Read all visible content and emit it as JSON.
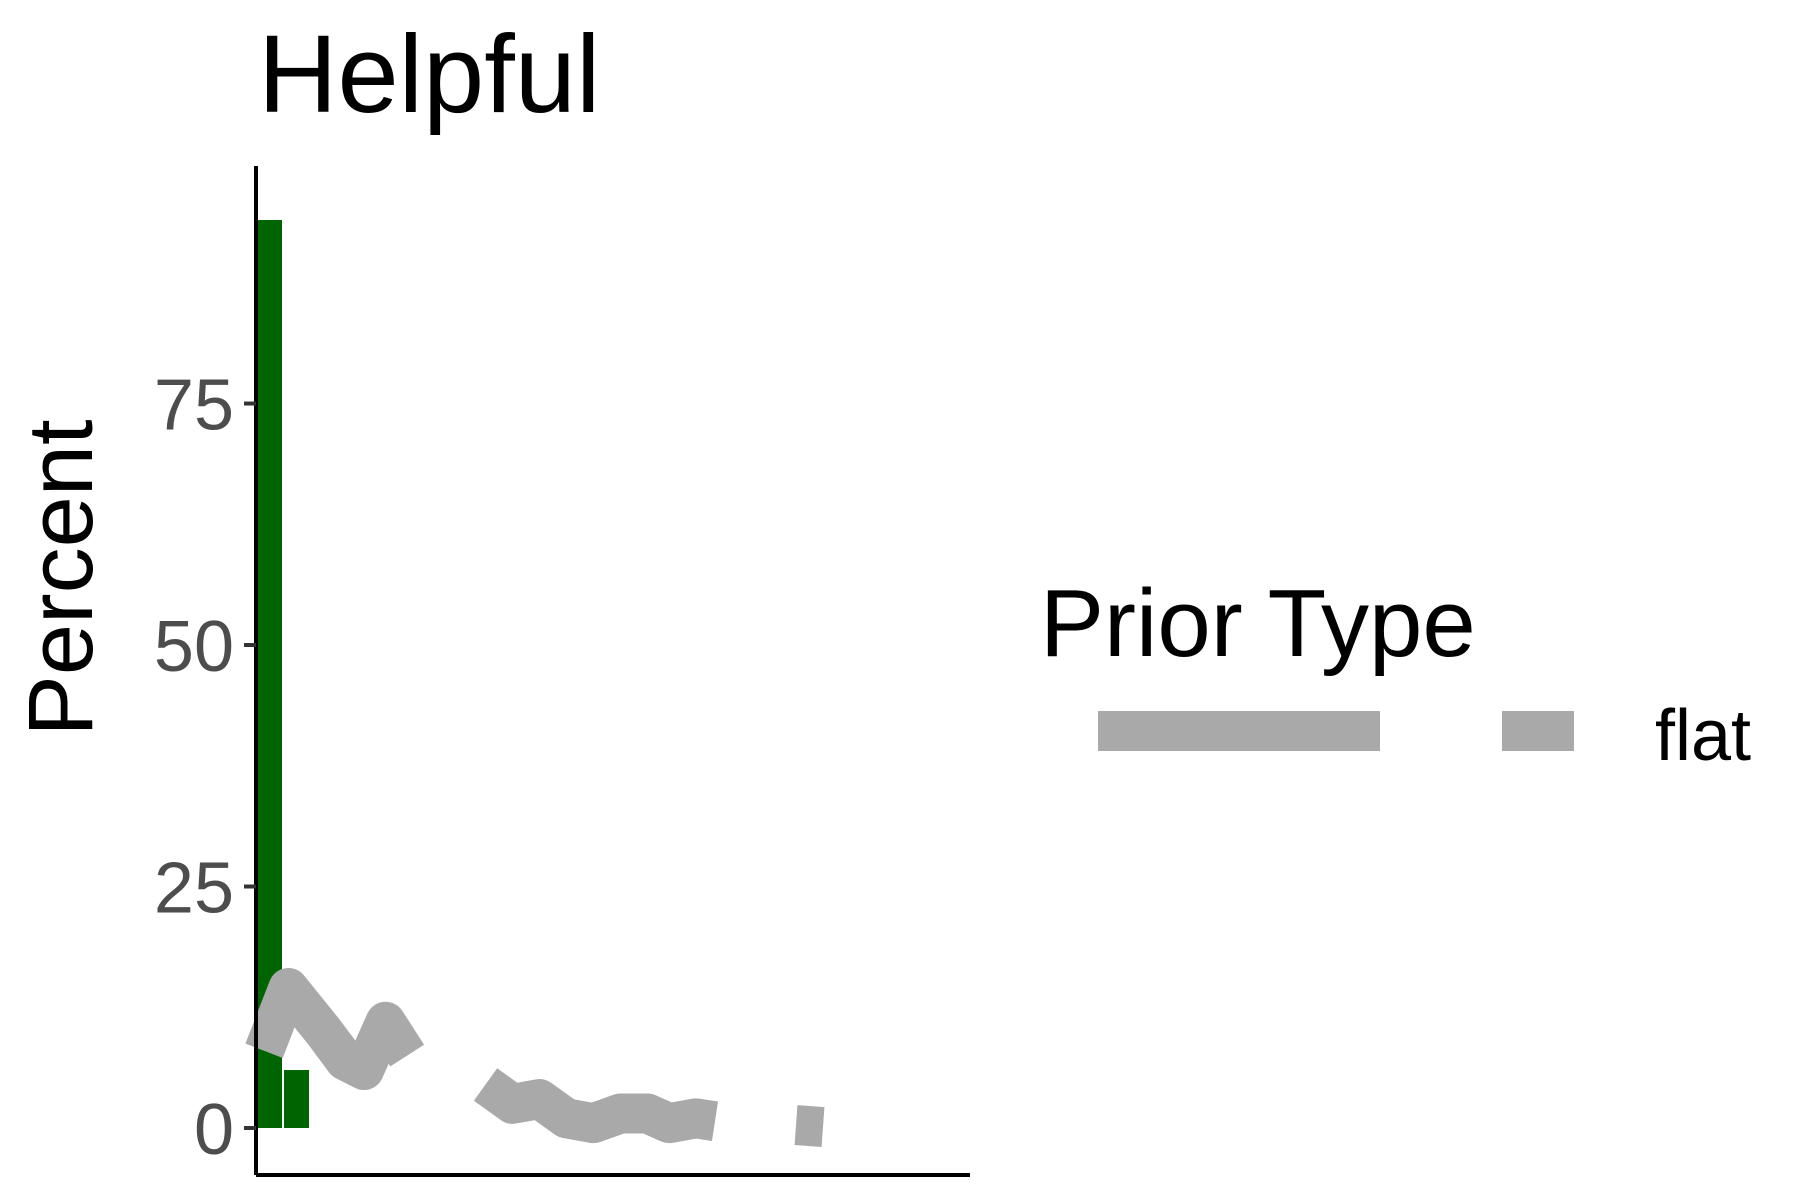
{
  "chart_data": {
    "type": "bar",
    "title": "Helpful",
    "xlabel": "",
    "ylabel": "Percent",
    "ylim": [
      -5,
      100
    ],
    "yticks": [
      0,
      25,
      50,
      75
    ],
    "xlim": [
      0,
      21
    ],
    "grid": false,
    "bars": {
      "color": "#006400",
      "x": [
        0.5,
        1.5
      ],
      "values": [
        94,
        6
      ]
    },
    "series": [
      {
        "name": "flat",
        "color": "#a9a9a9",
        "segments": [
          [
            [
              0.3,
              8
            ],
            [
              1.2,
              14.5
            ],
            [
              2.5,
              10
            ],
            [
              3.3,
              7
            ],
            [
              4,
              6
            ],
            [
              4.8,
              11
            ],
            [
              5.6,
              7.5
            ]
          ],
          [
            [
              8.5,
              4.5
            ],
            [
              9.5,
              2.5
            ],
            [
              10.5,
              3
            ],
            [
              11.5,
              1
            ],
            [
              12.5,
              0.5
            ],
            [
              13.5,
              1.5
            ],
            [
              14.5,
              1.5
            ],
            [
              15.3,
              0.5
            ],
            [
              16.3,
              1
            ],
            [
              17,
              0.7
            ]
          ],
          [
            [
              20,
              0.3
            ],
            [
              21,
              0.1
            ]
          ]
        ]
      }
    ],
    "legend": {
      "title": "Prior Type",
      "position": "right",
      "entries": [
        {
          "label": "flat",
          "color": "#a9a9a9"
        }
      ]
    }
  }
}
